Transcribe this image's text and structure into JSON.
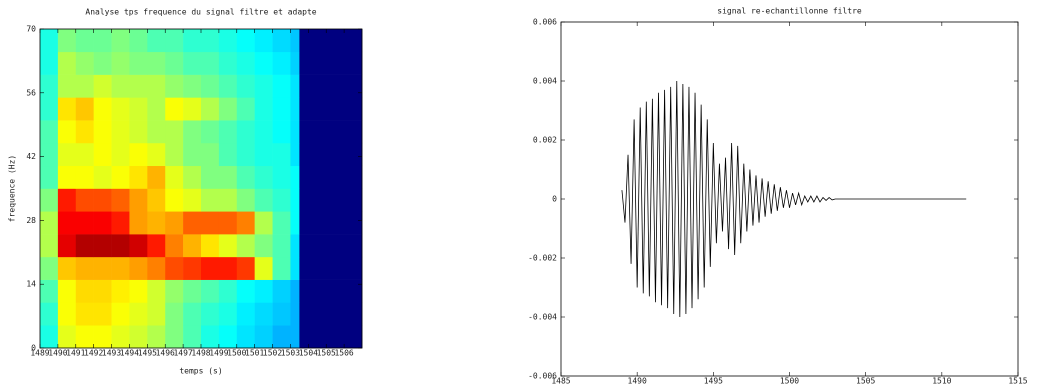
{
  "chart_data": [
    {
      "type": "heatmap",
      "title": "Analyse tps frequence du signal filtre et adapte",
      "x_label": "temps (s)",
      "y_label": "frequence (Hz)",
      "colormap": "jet",
      "zlim": [
        0,
        1
      ],
      "xlim": [
        1489,
        1507
      ],
      "ylim": [
        0,
        70
      ],
      "xticks": [
        1489,
        1490,
        1491,
        1492,
        1493,
        1494,
        1495,
        1496,
        1497,
        1498,
        1499,
        1500,
        1501,
        1502,
        1503,
        1504,
        1505,
        1506
      ],
      "yticks": [
        0,
        14,
        28,
        42,
        56,
        70
      ],
      "xbins": [
        1489,
        1490,
        1491,
        1492,
        1493,
        1494,
        1495,
        1496,
        1497,
        1498,
        1499,
        1500,
        1501,
        1502,
        1503,
        1503.5,
        1507
      ],
      "ybins": [
        0,
        5,
        10,
        15,
        20,
        25,
        30,
        35,
        40,
        45,
        50,
        55,
        60,
        65,
        70
      ],
      "z": [
        [
          0.4,
          0.6,
          0.62,
          0.62,
          0.6,
          0.58,
          0.55,
          0.5,
          0.45,
          0.4,
          0.38,
          0.35,
          0.33,
          0.3,
          0.3,
          0
        ],
        [
          0.42,
          0.62,
          0.65,
          0.65,
          0.62,
          0.6,
          0.58,
          0.5,
          0.45,
          0.42,
          0.4,
          0.36,
          0.34,
          0.32,
          0.3,
          0
        ],
        [
          0.45,
          0.62,
          0.66,
          0.66,
          0.64,
          0.62,
          0.58,
          0.52,
          0.48,
          0.45,
          0.42,
          0.38,
          0.36,
          0.33,
          0.3,
          0
        ],
        [
          0.5,
          0.68,
          0.7,
          0.7,
          0.7,
          0.72,
          0.75,
          0.8,
          0.82,
          0.85,
          0.85,
          0.82,
          0.6,
          0.45,
          0.35,
          0
        ],
        [
          0.55,
          0.9,
          0.95,
          0.95,
          0.95,
          0.92,
          0.85,
          0.75,
          0.7,
          0.65,
          0.6,
          0.55,
          0.5,
          0.45,
          0.35,
          0
        ],
        [
          0.55,
          0.88,
          0.88,
          0.88,
          0.85,
          0.72,
          0.7,
          0.72,
          0.78,
          0.78,
          0.78,
          0.75,
          0.55,
          0.45,
          0.38,
          0
        ],
        [
          0.5,
          0.85,
          0.8,
          0.8,
          0.78,
          0.72,
          0.68,
          0.62,
          0.6,
          0.55,
          0.55,
          0.5,
          0.45,
          0.42,
          0.38,
          0
        ],
        [
          0.45,
          0.62,
          0.62,
          0.6,
          0.62,
          0.65,
          0.7,
          0.6,
          0.55,
          0.5,
          0.5,
          0.45,
          0.42,
          0.4,
          0.38,
          0
        ],
        [
          0.45,
          0.6,
          0.6,
          0.62,
          0.6,
          0.62,
          0.6,
          0.55,
          0.5,
          0.5,
          0.45,
          0.42,
          0.4,
          0.4,
          0.35,
          0
        ],
        [
          0.45,
          0.62,
          0.65,
          0.62,
          0.6,
          0.58,
          0.55,
          0.55,
          0.5,
          0.48,
          0.45,
          0.42,
          0.4,
          0.38,
          0.35,
          0
        ],
        [
          0.42,
          0.65,
          0.68,
          0.62,
          0.6,
          0.58,
          0.55,
          0.62,
          0.6,
          0.55,
          0.5,
          0.45,
          0.4,
          0.38,
          0.35,
          0
        ],
        [
          0.42,
          0.55,
          0.55,
          0.58,
          0.55,
          0.55,
          0.55,
          0.52,
          0.5,
          0.48,
          0.45,
          0.42,
          0.4,
          0.38,
          0.35,
          0
        ],
        [
          0.4,
          0.55,
          0.52,
          0.5,
          0.52,
          0.5,
          0.5,
          0.48,
          0.45,
          0.45,
          0.42,
          0.4,
          0.38,
          0.36,
          0.33,
          0
        ],
        [
          0.4,
          0.5,
          0.48,
          0.48,
          0.5,
          0.48,
          0.45,
          0.45,
          0.42,
          0.42,
          0.4,
          0.38,
          0.36,
          0.34,
          0.32,
          0
        ]
      ]
    },
    {
      "type": "line",
      "title": "signal re-echantillonne filtre",
      "color": "#000000",
      "xlim": [
        1485,
        1515
      ],
      "ylim": [
        -0.006,
        0.006
      ],
      "xticks": [
        1485,
        1490,
        1495,
        1500,
        1505,
        1510,
        1515
      ],
      "yticks": [
        -0.006,
        -0.004,
        -0.002,
        0,
        0.002,
        0.004,
        0.006
      ],
      "x": [
        1489.0,
        1489.2,
        1489.4,
        1489.6,
        1489.8,
        1490.0,
        1490.2,
        1490.4,
        1490.6,
        1490.8,
        1491.0,
        1491.2,
        1491.4,
        1491.6,
        1491.8,
        1492.0,
        1492.2,
        1492.4,
        1492.6,
        1492.8,
        1493.0,
        1493.2,
        1493.4,
        1493.6,
        1493.8,
        1494.0,
        1494.2,
        1494.4,
        1494.6,
        1494.8,
        1495.0,
        1495.2,
        1495.4,
        1495.6,
        1495.8,
        1496.0,
        1496.2,
        1496.4,
        1496.6,
        1496.8,
        1497.0,
        1497.2,
        1497.4,
        1497.6,
        1497.8,
        1498.0,
        1498.2,
        1498.4,
        1498.6,
        1498.8,
        1499.0,
        1499.2,
        1499.4,
        1499.6,
        1499.8,
        1500.0,
        1500.2,
        1500.4,
        1500.6,
        1500.8,
        1501.0,
        1501.2,
        1501.4,
        1501.6,
        1501.8,
        1502.0,
        1502.2,
        1502.4,
        1502.6,
        1502.8,
        1503.0,
        1511.6
      ],
      "y": [
        0.0003,
        -0.0008,
        0.0015,
        -0.0022,
        0.0027,
        -0.003,
        0.0031,
        -0.0032,
        0.0033,
        -0.0033,
        0.0034,
        -0.0035,
        0.0036,
        -0.0036,
        0.0037,
        -0.0037,
        0.0038,
        -0.0039,
        0.004,
        -0.004,
        0.0039,
        -0.0039,
        0.0038,
        -0.0037,
        0.0036,
        -0.0034,
        0.0032,
        -0.003,
        0.0027,
        -0.0023,
        0.0019,
        -0.0015,
        0.0012,
        -0.0011,
        0.0014,
        -0.0017,
        0.0019,
        -0.0019,
        0.0018,
        -0.0015,
        0.0012,
        -0.0011,
        0.001,
        -0.0009,
        0.0008,
        -0.0008,
        0.0007,
        -0.0006,
        0.0006,
        -0.0005,
        0.0005,
        -0.0004,
        0.0004,
        -0.0003,
        0.0003,
        -0.0003,
        0.0002,
        -0.0002,
        0.0002,
        -0.0002,
        0.0001,
        -0.0001,
        0.0001,
        -0.0001,
        0.0001,
        -0.0001,
        5e-05,
        -5e-05,
        5e-05,
        -3e-05,
        0,
        0
      ]
    }
  ]
}
